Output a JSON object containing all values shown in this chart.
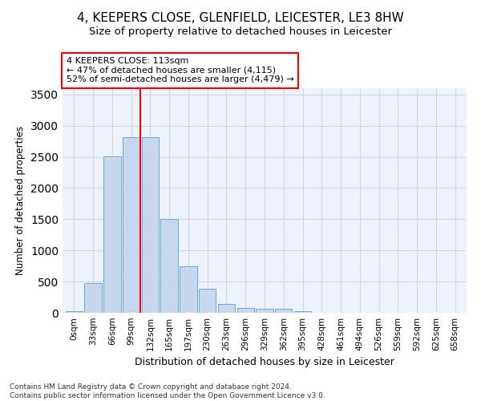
{
  "title1": "4, KEEPERS CLOSE, GLENFIELD, LEICESTER, LE3 8HW",
  "title2": "Size of property relative to detached houses in Leicester",
  "xlabel": "Distribution of detached houses by size in Leicester",
  "ylabel": "Number of detached properties",
  "footnote1": "Contains HM Land Registry data © Crown copyright and database right 2024.",
  "footnote2": "Contains public sector information licensed under the Open Government Licence v3.0.",
  "bar_labels": [
    "0sqm",
    "33sqm",
    "66sqm",
    "99sqm",
    "132sqm",
    "165sqm",
    "197sqm",
    "230sqm",
    "263sqm",
    "296sqm",
    "329sqm",
    "362sqm",
    "395sqm",
    "428sqm",
    "461sqm",
    "494sqm",
    "526sqm",
    "559sqm",
    "592sqm",
    "625sqm",
    "658sqm"
  ],
  "bar_values": [
    20,
    470,
    2510,
    2820,
    2820,
    1510,
    750,
    390,
    145,
    75,
    60,
    60,
    20,
    0,
    0,
    0,
    0,
    0,
    0,
    0,
    0
  ],
  "bar_color": "#c5d8f0",
  "bar_edgecolor": "#6aaad4",
  "ylim": [
    0,
    3600
  ],
  "yticks": [
    0,
    500,
    1000,
    1500,
    2000,
    2500,
    3000,
    3500
  ],
  "annotation_box_text": "4 KEEPERS CLOSE: 113sqm\n← 47% of detached houses are smaller (4,115)\n52% of semi-detached houses are larger (4,479) →",
  "red_line_x": 3.5,
  "background_color": "#eef2fb",
  "grid_color": "#d0d8e8",
  "fig_bg_color": "#ffffff",
  "title_fontsize": 11,
  "subtitle_fontsize": 9.5,
  "ylabel_fontsize": 8.5,
  "xlabel_fontsize": 9,
  "tick_fontsize": 7.5,
  "annot_fontsize": 8,
  "footnote_fontsize": 6.5
}
